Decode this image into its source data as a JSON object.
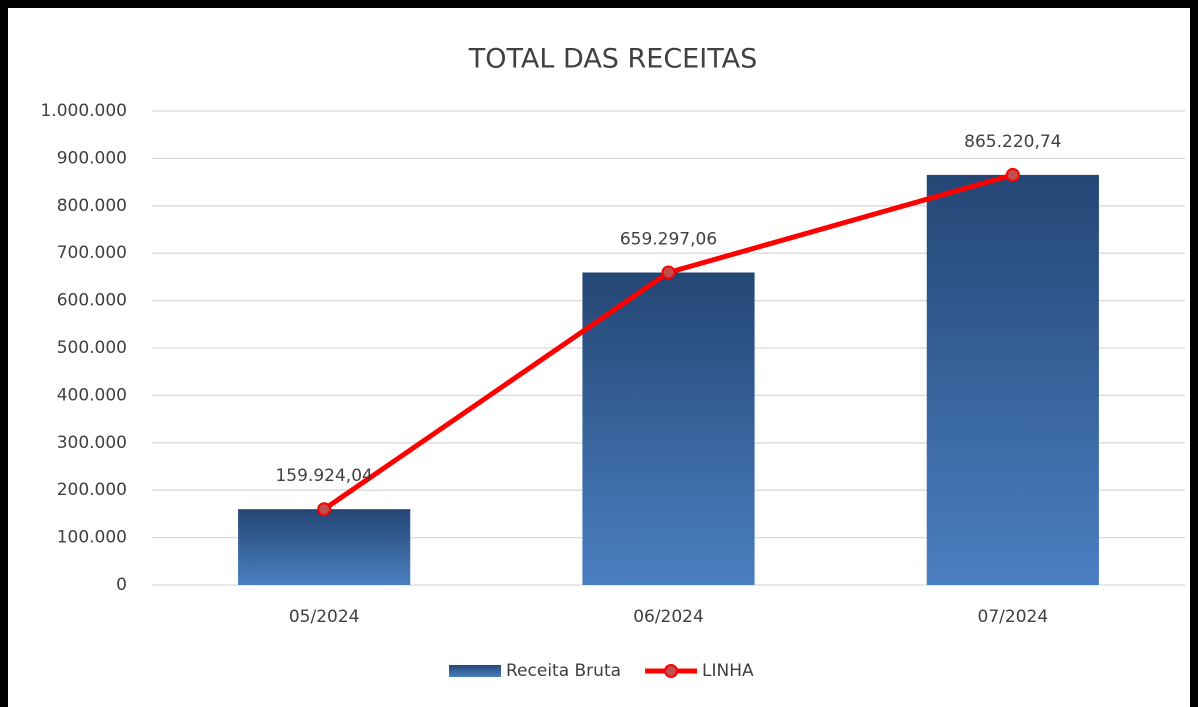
{
  "chart_data": {
    "type": "bar",
    "title": "TOTAL DAS RECEITAS",
    "categories": [
      "05/2024",
      "06/2024",
      "07/2024"
    ],
    "series": [
      {
        "name": "Receita Bruta",
        "type": "bar",
        "color": "#4a7fc1",
        "values": [
          159924.04,
          659297.06,
          865220.74
        ]
      },
      {
        "name": "LINHA",
        "type": "line",
        "color": "#ff0000",
        "values": [
          159924.04,
          659297.06,
          865220.74
        ],
        "value_labels": [
          "159.924,04",
          "659.297,06",
          "865.220,74"
        ]
      }
    ],
    "ylim": [
      0,
      1000000
    ],
    "yticks": [
      0,
      {
        "value": 100000,
        "label": "100.000"
      },
      {
        "value": 200000,
        "label": "200.000"
      },
      {
        "value": 300000,
        "label": "300.000"
      },
      {
        "value": 400000,
        "label": "400.000"
      },
      {
        "value": 500000,
        "label": "500.000"
      },
      {
        "value": 600000,
        "label": "600.000"
      },
      {
        "value": 700000,
        "label": "700.000"
      },
      {
        "value": 800000,
        "label": "800.000"
      },
      {
        "value": 900000,
        "label": "900.000"
      },
      {
        "value": 1000000,
        "label": "1.000.000"
      }
    ],
    "grid": true,
    "legend": "bottom"
  }
}
